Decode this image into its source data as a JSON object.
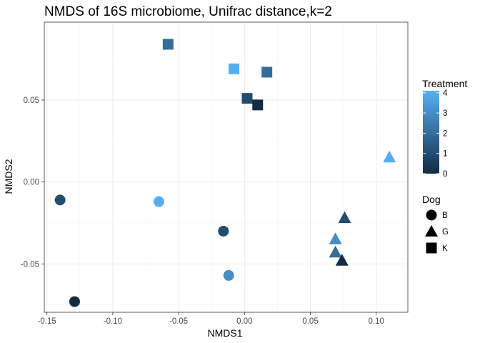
{
  "chart_data": {
    "type": "scatter",
    "title": "NMDS of 16S microbiome, Unifrac distance,k=2",
    "xlabel": "NMDS1",
    "ylabel": "NMDS2",
    "xlim": [
      -0.152,
      0.124
    ],
    "ylim": [
      -0.0795,
      0.0975
    ],
    "x_ticks": [
      -0.15,
      -0.1,
      -0.05,
      0.0,
      0.05,
      0.1
    ],
    "x_tick_labels": [
      "-0.15",
      "-0.10",
      "-0.05",
      "0.00",
      "0.05",
      "0.10"
    ],
    "y_ticks": [
      -0.05,
      0.0,
      0.05
    ],
    "y_tick_labels": [
      "-0.05",
      "0.00",
      "0.05"
    ],
    "grid": true,
    "points": [
      {
        "dog": "K",
        "x": -0.058,
        "y": 0.084,
        "treatment": 2
      },
      {
        "dog": "K",
        "x": -0.008,
        "y": 0.069,
        "treatment": 4
      },
      {
        "dog": "K",
        "x": 0.017,
        "y": 0.067,
        "treatment": 2
      },
      {
        "dog": "K",
        "x": 0.002,
        "y": 0.051,
        "treatment": 1
      },
      {
        "dog": "K",
        "x": 0.01,
        "y": 0.047,
        "treatment": 0
      },
      {
        "dog": "G",
        "x": 0.11,
        "y": 0.015,
        "treatment": 4
      },
      {
        "dog": "G",
        "x": 0.076,
        "y": -0.022,
        "treatment": 1
      },
      {
        "dog": "G",
        "x": 0.069,
        "y": -0.035,
        "treatment": 3
      },
      {
        "dog": "G",
        "x": 0.069,
        "y": -0.043,
        "treatment": 2
      },
      {
        "dog": "G",
        "x": 0.074,
        "y": -0.048,
        "treatment": 0
      },
      {
        "dog": "B",
        "x": -0.14,
        "y": -0.011,
        "treatment": 1
      },
      {
        "dog": "B",
        "x": -0.065,
        "y": -0.012,
        "treatment": 4
      },
      {
        "dog": "B",
        "x": -0.016,
        "y": -0.03,
        "treatment": 1
      },
      {
        "dog": "B",
        "x": -0.012,
        "y": -0.057,
        "treatment": 3
      },
      {
        "dog": "B",
        "x": -0.129,
        "y": -0.073,
        "treatment": 0
      }
    ],
    "legend": {
      "position": "right",
      "color": {
        "title": "Treatment",
        "min": 0,
        "max": 4.1,
        "breaks": [
          0,
          1,
          2,
          3,
          4
        ],
        "break_labels": [
          "0",
          "1",
          "2",
          "3",
          "4"
        ],
        "low_color": "#132b43",
        "high_color": "#56b1f7"
      },
      "shape": {
        "title": "Dog",
        "entries": [
          {
            "label": "B",
            "shape": "circle"
          },
          {
            "label": "G",
            "shape": "triangle"
          },
          {
            "label": "K",
            "shape": "square"
          }
        ]
      }
    }
  }
}
